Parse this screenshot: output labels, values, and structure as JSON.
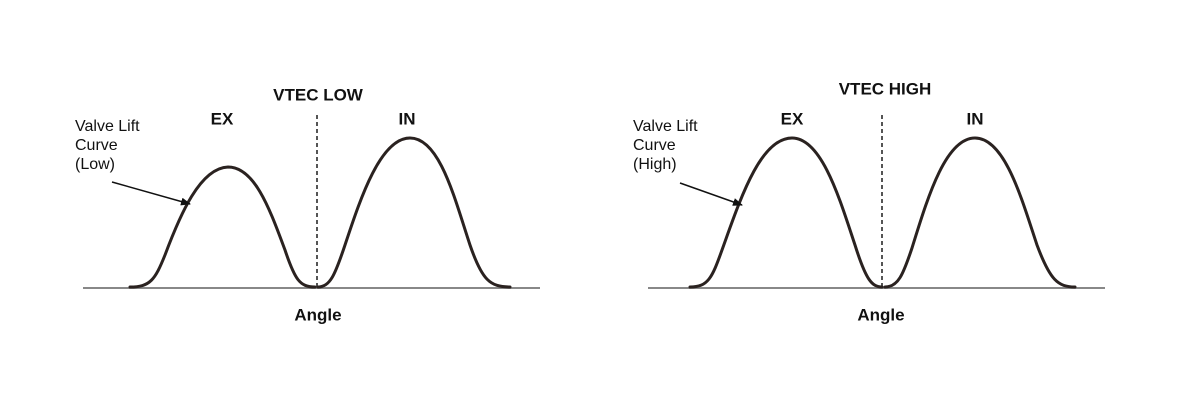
{
  "panels": [
    {
      "title": "VTEC LOW",
      "exhaust_label": "EX",
      "intake_label": "IN",
      "annotation": [
        "Valve Lift",
        "Curve",
        "(Low)"
      ],
      "x_axis_label": "Angle"
    },
    {
      "title": "VTEC HIGH",
      "exhaust_label": "EX",
      "intake_label": "IN",
      "annotation": [
        "Valve Lift",
        "Curve",
        "(High)"
      ],
      "x_axis_label": "Angle"
    }
  ]
}
